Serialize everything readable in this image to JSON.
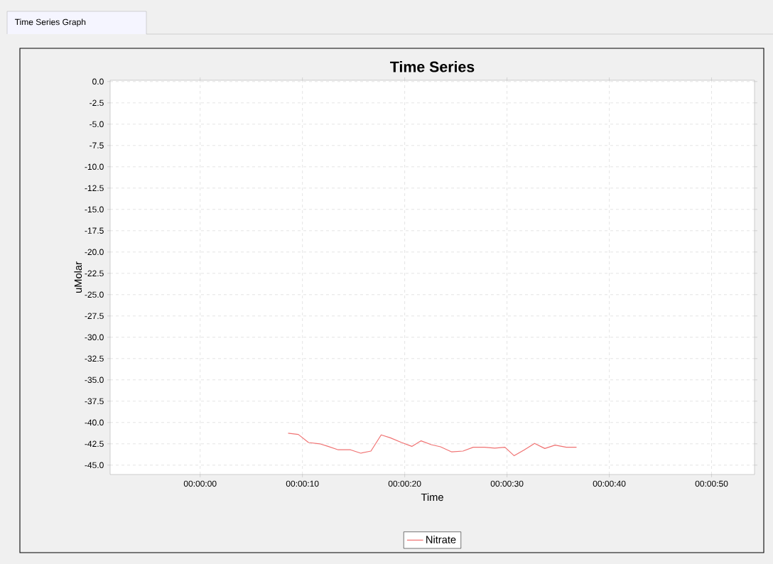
{
  "chart_data": {
    "type": "line",
    "title": "Time Series",
    "xlabel": "Time",
    "ylabel": "uMolar",
    "annotations": [
      "Time Series Graph"
    ],
    "x": [
      8.6,
      9.6,
      10.6,
      11.7,
      12.5,
      13.5,
      14.7,
      15.7,
      16.7,
      17.7,
      18.6,
      19.7,
      20.7,
      21.6,
      22.6,
      23.5,
      24.6,
      25.7,
      26.7,
      27.8,
      28.8,
      29.8,
      30.7,
      31.7,
      32.7,
      33.7,
      34.7,
      35.8,
      36.8
    ],
    "series": [
      {
        "name": "Nitrate",
        "color": "#f07272",
        "values": [
          -41.25,
          -41.4,
          -42.35,
          -42.5,
          -42.8,
          -43.2,
          -43.2,
          -43.6,
          -43.35,
          -41.45,
          -41.8,
          -42.35,
          -42.8,
          -42.15,
          -42.6,
          -42.85,
          -43.45,
          -43.35,
          -42.9,
          -42.9,
          -43.0,
          -42.9,
          -43.9,
          -43.2,
          -42.45,
          -43.05,
          -42.65,
          -42.9,
          -42.9
        ]
      }
    ],
    "xlim": [
      -8.8,
      54.2
    ],
    "ylim": [
      -46.1,
      0.15
    ],
    "xticks": [
      {
        "value": 0,
        "label": "00:00:00"
      },
      {
        "value": 10,
        "label": "00:00:10"
      },
      {
        "value": 20,
        "label": "00:00:20"
      },
      {
        "value": 30,
        "label": "00:00:30"
      },
      {
        "value": 40,
        "label": "00:00:40"
      },
      {
        "value": 50,
        "label": "00:00:50"
      }
    ],
    "yticks": [
      {
        "value": 0,
        "label": "0.0"
      },
      {
        "value": -2.5,
        "label": "-2.5"
      },
      {
        "value": -5,
        "label": "-5.0"
      },
      {
        "value": -7.5,
        "label": "-7.5"
      },
      {
        "value": -10,
        "label": "-10.0"
      },
      {
        "value": -12.5,
        "label": "-12.5"
      },
      {
        "value": -15,
        "label": "-15.0"
      },
      {
        "value": -17.5,
        "label": "-17.5"
      },
      {
        "value": -20,
        "label": "-20.0"
      },
      {
        "value": -22.5,
        "label": "-22.5"
      },
      {
        "value": -25,
        "label": "-25.0"
      },
      {
        "value": -27.5,
        "label": "-27.5"
      },
      {
        "value": -30,
        "label": "-30.0"
      },
      {
        "value": -32.5,
        "label": "-32.5"
      },
      {
        "value": -35,
        "label": "-35.0"
      },
      {
        "value": -37.5,
        "label": "-37.5"
      },
      {
        "value": -40,
        "label": "-40.0"
      },
      {
        "value": -42.5,
        "label": "-42.5"
      },
      {
        "value": -45,
        "label": "-45.0"
      }
    ],
    "grid": true,
    "legend": "bottom",
    "marker": "none",
    "line_style": "solid"
  }
}
